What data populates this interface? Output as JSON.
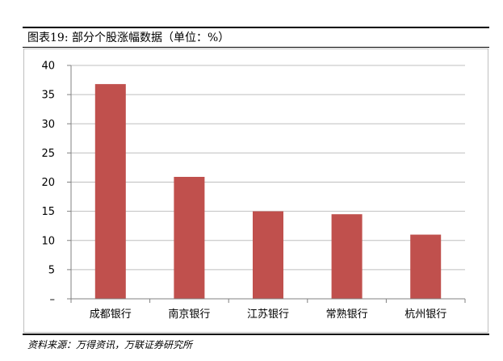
{
  "header": {
    "title": "图表19:  部分个股涨幅数据（单位：%）"
  },
  "footer": {
    "source": "资料来源：万得资讯，万联证券研究所"
  },
  "colors": {
    "bar": "#C0504D",
    "grid": "#BFBFBF",
    "axis": "#808080"
  },
  "chart_data": {
    "type": "bar",
    "categories": [
      "成都银行",
      "南京银行",
      "江苏银行",
      "常熟银行",
      "杭州银行"
    ],
    "values": [
      36.8,
      20.9,
      15.0,
      14.5,
      11.0
    ],
    "ylim": [
      0,
      40
    ],
    "yticks": [
      0,
      5,
      10,
      15,
      20,
      25,
      30,
      35,
      40
    ],
    "ytick_labels": [
      "–",
      "5",
      "10",
      "15",
      "20",
      "25",
      "30",
      "35",
      "40"
    ],
    "xlabel": "",
    "ylabel": "",
    "grid": true,
    "legend": "none"
  }
}
